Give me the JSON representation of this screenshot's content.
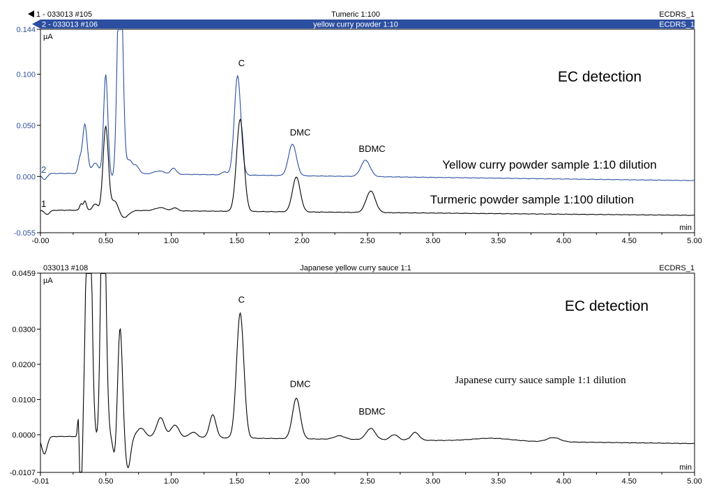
{
  "colors": {
    "trace_blue": "#2b4ea0",
    "trace_black": "#000000",
    "banner_blue": "#2b4ea0",
    "axis_blue_text": "#3050a0"
  },
  "chart_data": [
    {
      "type": "line",
      "header": [
        {
          "left": "1 - 033013 #105",
          "center": "Tumeric 1:100",
          "right": "ECDRS_1"
        },
        {
          "left": "2 - 033013 #106",
          "center": "yellow curry powder 1:10",
          "right": "ECDRS_1"
        }
      ],
      "y_unit": "µA",
      "x_unit": "min",
      "xlim": [
        -0.01,
        5.0
      ],
      "ylim": [
        -0.055,
        0.144
      ],
      "x_ticks": [
        "-0.00",
        "0.50",
        "1.00",
        "1.50",
        "2.00",
        "2.50",
        "3.00",
        "3.50",
        "4.00",
        "4.50",
        "5.00"
      ],
      "y_ticks": [
        {
          "value": 0.144,
          "label": "0.144"
        },
        {
          "value": 0.1,
          "label": "0.100"
        },
        {
          "value": 0.05,
          "label": "0.050"
        },
        {
          "value": 0.0,
          "label": "0.000"
        },
        {
          "value": -0.055,
          "label": "-0.055"
        }
      ],
      "annotations": {
        "detection": "EC detection",
        "blue_caption": "Yellow curry  powder sample 1:10 dilution",
        "black_caption": "Turmeric powder sample 1:100 dilution",
        "trace_marker_2": "2",
        "trace_marker_1": "1"
      },
      "peak_labels": [
        {
          "text": "C",
          "x": 1.53,
          "y": 0.108
        },
        {
          "text": "DMC",
          "x": 1.98,
          "y": 0.04
        },
        {
          "text": "BDMC",
          "x": 2.53,
          "y": 0.024
        }
      ],
      "series": [
        {
          "trace": "2",
          "color": "blue",
          "baseline": 0.003,
          "drift_end": -0.004,
          "peaks": [
            [
              0.29,
              0.012,
              0.012
            ],
            [
              0.33,
              0.048,
              0.018
            ],
            [
              0.41,
              0.01,
              0.025
            ],
            [
              0.49,
              0.097,
              0.016
            ],
            [
              0.6,
              0.23,
              0.02
            ],
            [
              0.67,
              0.012,
              0.02
            ],
            [
              0.72,
              0.008,
              0.025
            ],
            [
              0.9,
              0.003,
              0.04
            ],
            [
              1.01,
              0.006,
              0.02
            ],
            [
              1.4,
              0.003,
              0.02
            ],
            [
              1.5,
              0.097,
              0.025
            ],
            [
              1.92,
              0.031,
              0.03
            ],
            [
              2.48,
              0.016,
              0.035
            ]
          ],
          "dips": [
            [
              0.02,
              -0.006,
              0.02
            ],
            [
              0.55,
              -0.006,
              0.02
            ]
          ]
        },
        {
          "trace": "1",
          "color": "black",
          "baseline": -0.033,
          "drift_end": -0.038,
          "peaks": [
            [
              0.3,
              0.006,
              0.01
            ],
            [
              0.33,
              0.009,
              0.012
            ],
            [
              0.41,
              0.006,
              0.02
            ],
            [
              0.49,
              0.082,
              0.02
            ],
            [
              0.56,
              0.01,
              0.025
            ],
            [
              0.91,
              0.003,
              0.04
            ],
            [
              1.02,
              0.003,
              0.02
            ],
            [
              1.52,
              0.09,
              0.028
            ],
            [
              1.95,
              0.034,
              0.03
            ],
            [
              2.52,
              0.021,
              0.035
            ]
          ],
          "dips": [
            [
              0.04,
              -0.004,
              0.02
            ],
            [
              0.63,
              -0.007,
              0.035
            ]
          ]
        }
      ]
    },
    {
      "type": "line",
      "header": [
        {
          "left": "033013 #108",
          "center": "Japanese  yellow curry sauce 1:1",
          "right": "ECDRS_1"
        }
      ],
      "y_unit": "µA",
      "x_unit": "min",
      "xlim": [
        -0.01,
        5.0
      ],
      "ylim": [
        -0.0107,
        0.0459
      ],
      "x_ticks": [
        "-0.01",
        "0.50",
        "1.00",
        "1.50",
        "2.00",
        "2.50",
        "3.00",
        "3.50",
        "4.00",
        "4.50",
        "5.00"
      ],
      "y_ticks": [
        {
          "value": 0.0459,
          "label": "0.0459"
        },
        {
          "value": 0.03,
          "label": "0.0300"
        },
        {
          "value": 0.02,
          "label": "0.0200"
        },
        {
          "value": 0.01,
          "label": "0.0100"
        },
        {
          "value": 0.0,
          "label": "0.0000"
        },
        {
          "value": -0.0107,
          "label": "-0.0107"
        }
      ],
      "annotations": {
        "detection": "EC detection",
        "caption": "Japanese curry sauce sample 1:1 dilution"
      },
      "peak_labels": [
        {
          "text": "C",
          "x": 1.53,
          "y": 0.0375
        },
        {
          "text": "DMC",
          "x": 1.98,
          "y": 0.0135
        },
        {
          "text": "BDMC",
          "x": 2.53,
          "y": 0.0057
        }
      ],
      "series": [
        {
          "trace": "1",
          "color": "black",
          "baseline": -0.0005,
          "drift_end": -0.0025,
          "peaks": [
            [
              0.28,
              0.006,
              0.006
            ],
            [
              0.36,
              0.09,
              0.02
            ],
            [
              0.47,
              0.08,
              0.02
            ],
            [
              0.6,
              0.031,
              0.018
            ],
            [
              0.76,
              0.0025,
              0.03
            ],
            [
              0.91,
              0.0055,
              0.03
            ],
            [
              1.02,
              0.0035,
              0.03
            ],
            [
              1.16,
              0.0015,
              0.03
            ],
            [
              1.31,
              0.0065,
              0.025
            ],
            [
              1.52,
              0.0355,
              0.028
            ],
            [
              1.95,
              0.0115,
              0.03
            ],
            [
              2.28,
              0.001,
              0.04
            ],
            [
              2.52,
              0.0032,
              0.035
            ],
            [
              2.7,
              0.0015,
              0.03
            ],
            [
              2.86,
              0.0022,
              0.03
            ],
            [
              3.45,
              0.0008,
              0.15
            ],
            [
              3.92,
              0.0012,
              0.05
            ]
          ],
          "dips": [
            [
              0.02,
              -0.005,
              0.02
            ],
            [
              0.3,
              -0.03,
              0.008
            ],
            [
              0.44,
              -0.008,
              0.015
            ],
            [
              0.56,
              -0.006,
              0.015
            ],
            [
              0.66,
              -0.009,
              0.02
            ]
          ]
        }
      ]
    }
  ]
}
